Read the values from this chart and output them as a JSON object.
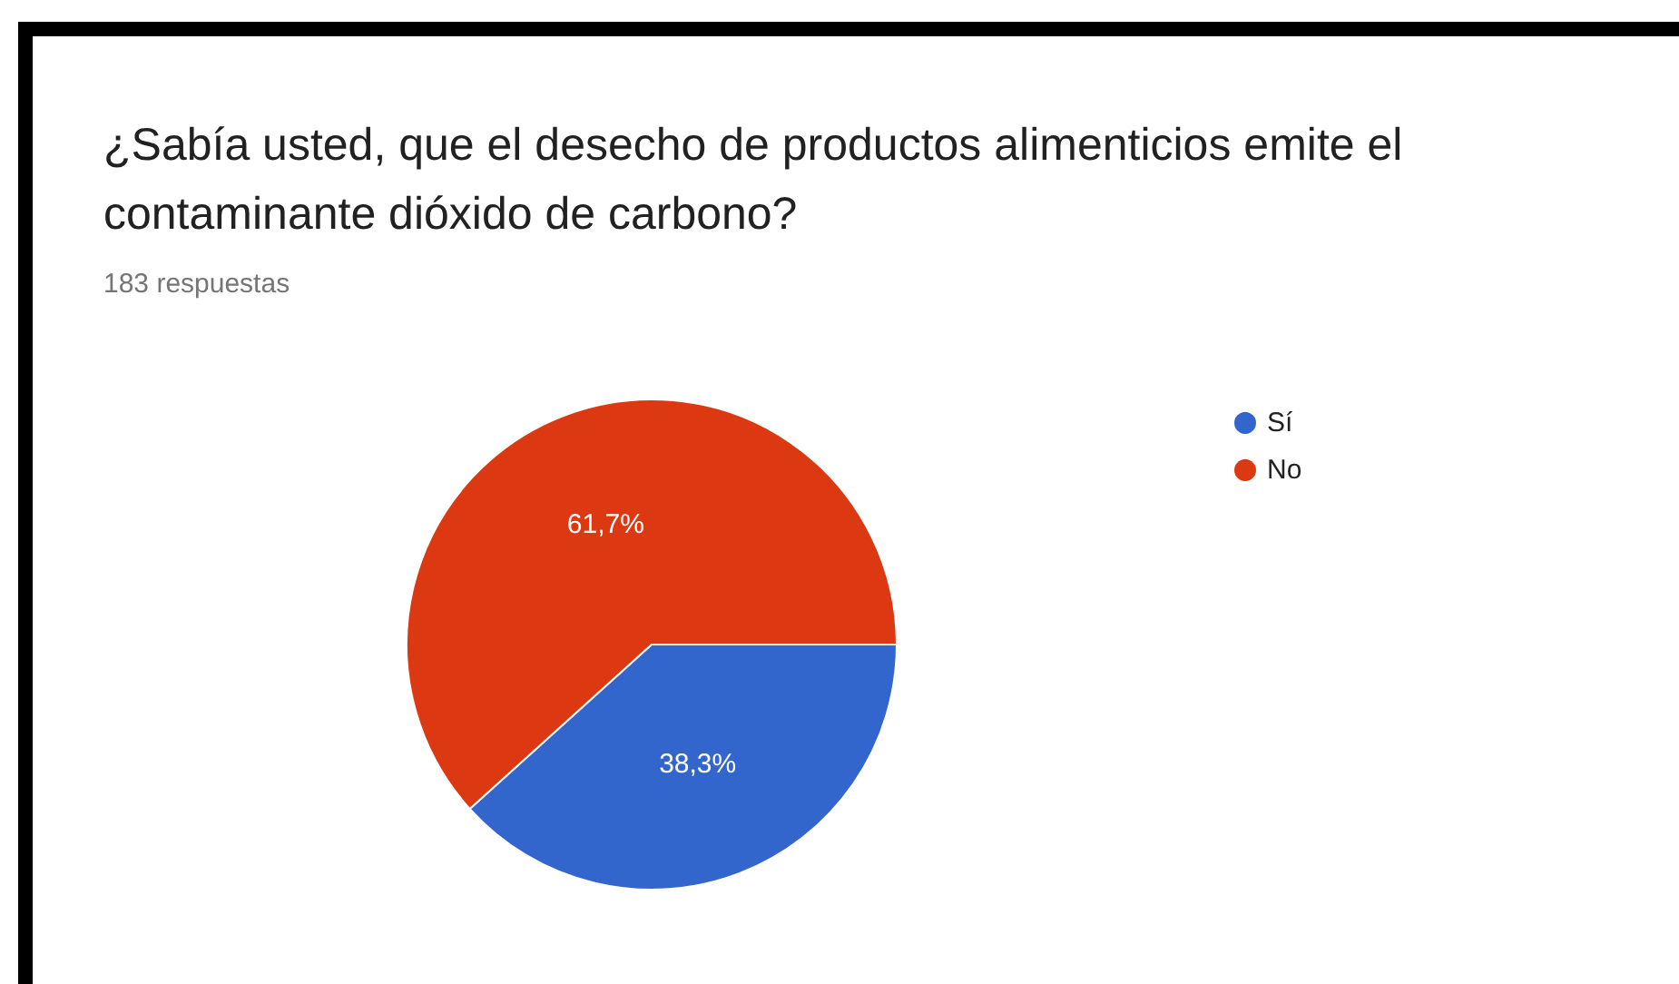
{
  "chart_data": {
    "type": "pie",
    "title": "¿Sabía usted, que el desecho de productos alimenticios emite el contaminante dióxido de carbono?",
    "subtitle": "183 respuestas",
    "categories": [
      "Sí",
      "No"
    ],
    "values": [
      38.3,
      61.7
    ],
    "colors": [
      "#3366cc",
      "#dc3912"
    ],
    "value_labels": [
      "38,3%",
      "61,7%"
    ],
    "legend": "top right"
  }
}
